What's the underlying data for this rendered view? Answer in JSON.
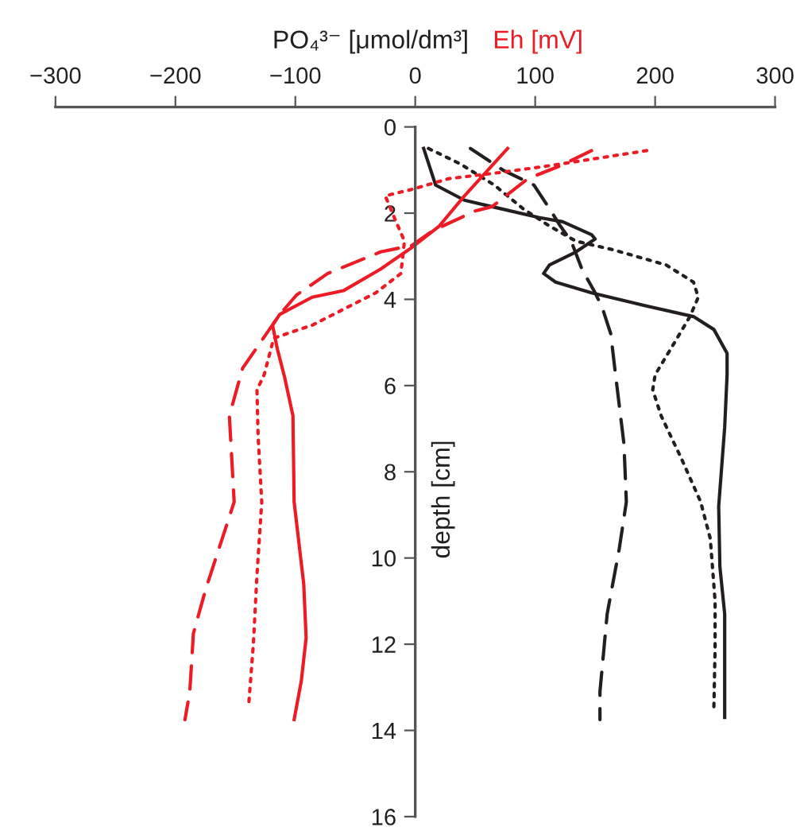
{
  "chart_data": {
    "type": "line",
    "xlabel": "PO₄³⁻ [μmol/dm³]",
    "ylabel": "depth [cm]",
    "annotations": [
      "Eh [mV]"
    ],
    "xlim": [
      -300,
      300
    ],
    "ylim": [
      16,
      0
    ],
    "xticks": [
      {
        "value": -300,
        "label": "−300"
      },
      {
        "value": -200,
        "label": "−200"
      },
      {
        "value": -100,
        "label": "−100"
      },
      0,
      100,
      200,
      300
    ],
    "yticks": [
      0,
      2,
      4,
      6,
      8,
      10,
      12,
      14,
      16
    ],
    "grid": false,
    "legend": false,
    "marker": "none",
    "series": [
      {
        "color": "#231f20",
        "line_style": "solid",
        "x": [
          7,
          17,
          41,
          64,
          103,
          123,
          147,
          150,
          134,
          112,
          107,
          117,
          147,
          192,
          232,
          249,
          260,
          260,
          258,
          253,
          254,
          258,
          258
        ],
        "values": [
          0.5,
          1.35,
          1.7,
          1.85,
          2.1,
          2.2,
          2.5,
          2.6,
          2.9,
          3.2,
          3.4,
          3.6,
          3.85,
          4.15,
          4.4,
          4.7,
          5.25,
          5.75,
          6.97,
          8.8,
          10.2,
          11.3,
          13.7
        ]
      },
      {
        "color": "#231f20",
        "line_style": "dashed",
        "x": [
          46,
          73,
          99,
          112,
          121,
          130,
          139,
          150,
          156,
          163,
          167,
          174,
          176,
          170,
          160,
          154,
          154
        ],
        "values": [
          0.5,
          1.0,
          1.35,
          1.9,
          2.3,
          2.65,
          3.3,
          3.85,
          4.2,
          4.8,
          5.75,
          7.35,
          8.7,
          9.8,
          11.3,
          13.1,
          13.75
        ]
      },
      {
        "color": "#231f20",
        "line_style": "dotted",
        "x": [
          11,
          37,
          66,
          90,
          112,
          134,
          165,
          209,
          232,
          236,
          229,
          213,
          200,
          198,
          205,
          222,
          238,
          246,
          250,
          250,
          249
        ],
        "values": [
          0.5,
          0.85,
          1.35,
          1.9,
          2.3,
          2.65,
          2.85,
          3.2,
          3.6,
          3.95,
          4.4,
          5.15,
          5.75,
          6.1,
          6.7,
          7.7,
          8.7,
          9.55,
          11.0,
          12.1,
          13.45
        ]
      },
      {
        "color": "#ed1c24",
        "line_style": "solid",
        "x": [
          77,
          41,
          20,
          -3,
          -29,
          -60,
          -86,
          -113,
          -119,
          -115,
          -109,
          -102,
          -101,
          -93,
          -91,
          -95,
          -101
        ],
        "values": [
          0.5,
          1.6,
          2.3,
          2.8,
          3.3,
          3.8,
          3.95,
          4.35,
          4.6,
          5.15,
          5.8,
          6.7,
          8.7,
          10.6,
          11.85,
          12.85,
          13.75
        ]
      },
      {
        "color": "#ed1c24",
        "line_style": "dashed",
        "x": [
          147,
          121,
          94,
          64,
          50,
          15,
          -3,
          -29,
          -73,
          -99,
          -113,
          -144,
          -155,
          -151,
          -175,
          -185,
          -188,
          -192
        ],
        "values": [
          0.55,
          0.9,
          1.2,
          1.85,
          1.95,
          2.4,
          2.75,
          2.9,
          3.4,
          3.9,
          4.35,
          5.6,
          6.7,
          8.7,
          10.75,
          11.75,
          13.1,
          13.75
        ]
      },
      {
        "color": "#ed1c24",
        "line_style": "dotted",
        "x": [
          193,
          112,
          73,
          28,
          -3,
          -25,
          -16,
          -9,
          -12,
          -33,
          -86,
          -118,
          -126,
          -132,
          -131,
          -128,
          -132,
          -135,
          -139
        ],
        "values": [
          0.55,
          0.9,
          1.05,
          1.2,
          1.45,
          1.6,
          2.2,
          2.65,
          3.4,
          3.85,
          4.6,
          4.9,
          5.75,
          6.1,
          7.2,
          8.7,
          10.4,
          12.0,
          13.45
        ]
      }
    ]
  }
}
